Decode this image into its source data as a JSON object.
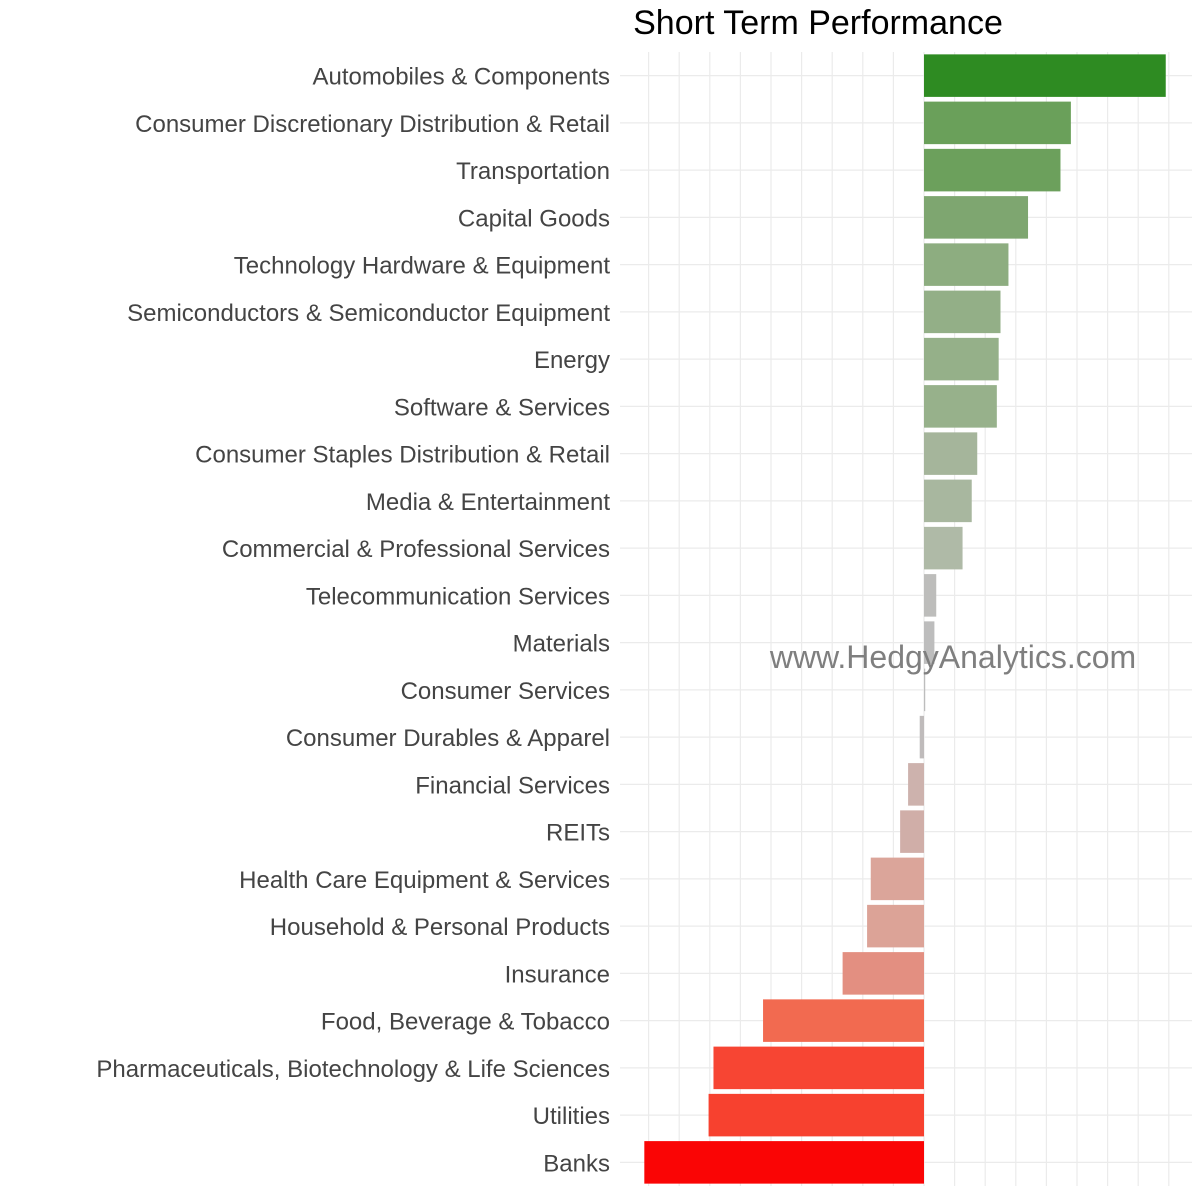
{
  "chart_data": {
    "type": "bar",
    "orientation": "horizontal",
    "title": "Short Term Performance",
    "xlabel": "",
    "ylabel": "",
    "grid": true,
    "legend": "none",
    "xlim": [
      -4.7,
      4.6
    ],
    "gridlines": [
      -4,
      -3,
      -2,
      -1,
      0,
      1,
      2,
      3,
      4
    ],
    "categories": [
      "Automobiles & Components",
      "Consumer Discretionary Distribution & Retail",
      "Transportation",
      "Capital Goods",
      "Technology Hardware & Equipment",
      "Semiconductors & Semiconductor Equipment",
      "Energy",
      "Software & Services",
      "Consumer Staples Distribution & Retail",
      "Media & Entertainment",
      "Commercial & Professional Services",
      "Telecommunication Services",
      "Materials",
      "Consumer Services",
      "Consumer Durables & Apparel",
      "Financial Services",
      "REITs",
      "Health Care Equipment & Services",
      "Household & Personal Products",
      "Insurance",
      "Food, Beverage & Tobacco",
      "Pharmaceuticals, Biotechnology & Life Sciences",
      "Utilities",
      "Banks"
    ],
    "values": [
      3.95,
      2.4,
      2.23,
      1.7,
      1.38,
      1.25,
      1.22,
      1.19,
      0.87,
      0.78,
      0.63,
      0.2,
      0.17,
      0.02,
      -0.07,
      -0.26,
      -0.39,
      -0.87,
      -0.93,
      -1.33,
      -2.63,
      -3.44,
      -3.52,
      -4.57
    ],
    "colors": [
      "#2e8b22",
      "#6aa05a",
      "#6ca05c",
      "#7ea670",
      "#8dad80",
      "#93af87",
      "#95b089",
      "#97b18b",
      "#a5b59b",
      "#a8b79f",
      "#afbaa7",
      "#bdbdbb",
      "#bdbdbd",
      "#bdbdbd",
      "#bfbbbb",
      "#cdb2ad",
      "#d0aea8",
      "#dba59a",
      "#dca397",
      "#e38f81",
      "#f26a50",
      "#f74533",
      "#f7412f",
      "#fa0505"
    ]
  },
  "watermark": "www.HedgyAnalytics.com"
}
